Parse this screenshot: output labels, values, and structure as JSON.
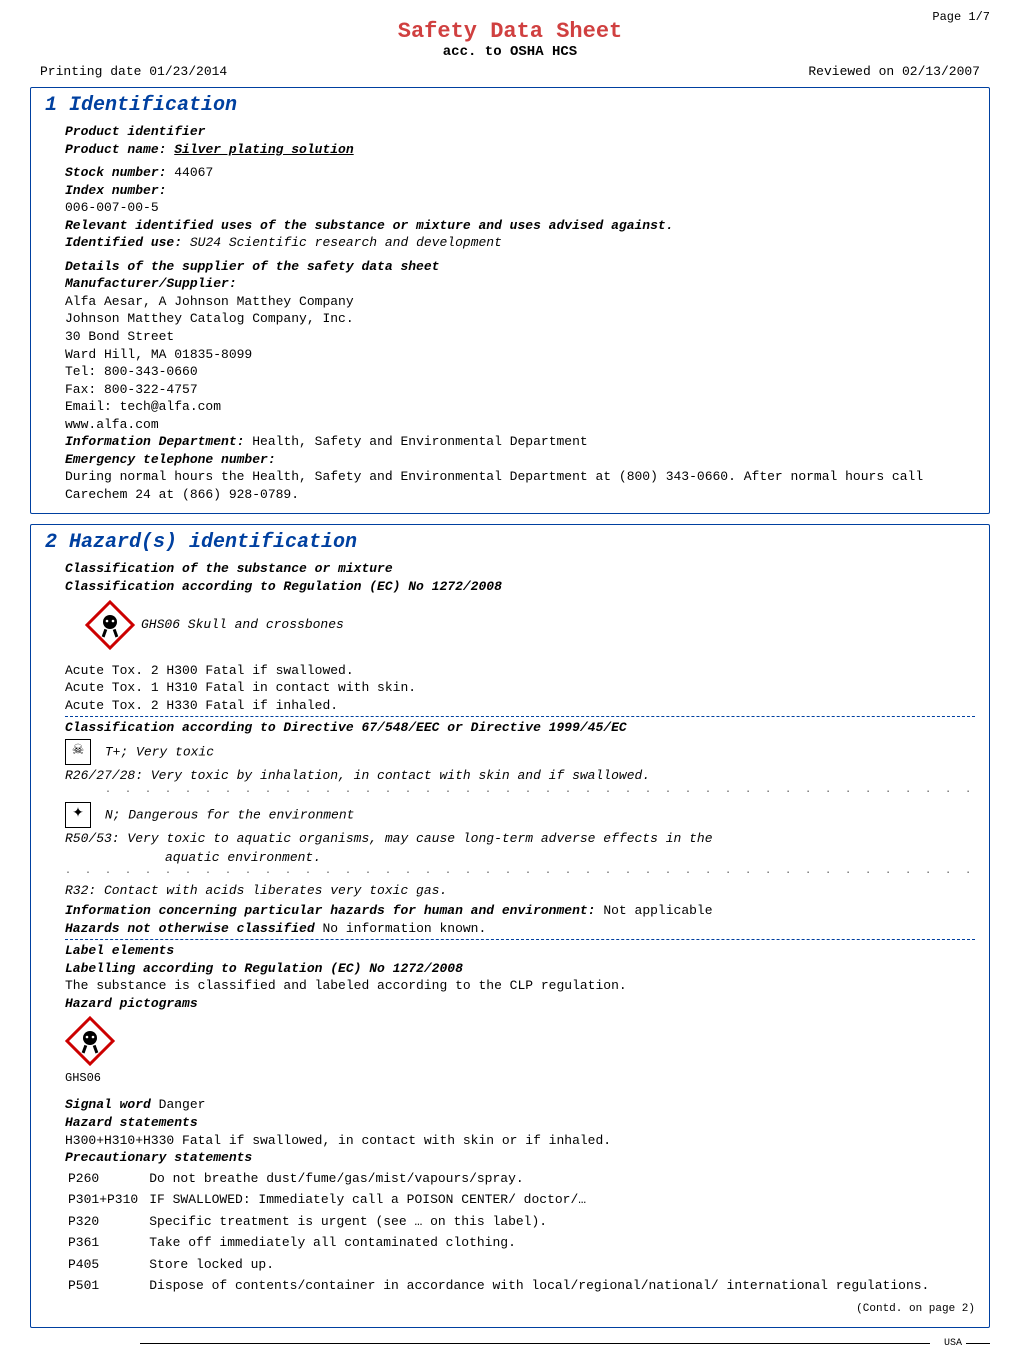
{
  "page_header": "Page 1/7",
  "title": "Safety Data Sheet",
  "subtitle": "acc. to OSHA HCS",
  "printing_date": "Printing date 01/23/2014",
  "reviewed_on": "Reviewed on 02/13/2007",
  "section1": {
    "title": "1 Identification",
    "product_identifier_label": "Product identifier",
    "product_name_label": "Product name:",
    "product_name": "Silver plating solution",
    "stock_number_label": "Stock number:",
    "stock_number": "44067",
    "index_number_label": "Index number:",
    "index_number": "006-007-00-5",
    "relevant_uses_label": "Relevant identified uses of the substance or mixture and uses advised against.",
    "identified_use_label": "Identified use:",
    "identified_use": "SU24   Scientific research and development",
    "supplier_details_label": "Details of the supplier of the safety data sheet",
    "manufacturer_label": "Manufacturer/Supplier:",
    "manufacturer_lines": [
      "Alfa Aesar, A Johnson Matthey Company",
      "Johnson Matthey Catalog Company, Inc.",
      "30 Bond Street",
      "Ward Hill, MA 01835-8099",
      "Tel: 800-343-0660",
      "Fax: 800-322-4757",
      "Email: tech@alfa.com",
      "www.alfa.com"
    ],
    "info_dept_label": "Information Department:",
    "info_dept": "Health, Safety and Environmental Department",
    "emergency_label": "Emergency telephone number:",
    "emergency_text": "During normal hours the Health, Safety and Environmental Department at (800) 343-0660.  After normal hours call Carechem 24 at (866) 928-0789."
  },
  "section2": {
    "title": "2 Hazard(s) identification",
    "classification_label": "Classification of the substance or mixture",
    "classification_ec_label": "Classification according to Regulation (EC) No 1272/2008",
    "ghs06_text": "GHS06 Skull and crossbones",
    "acute_tox": [
      "Acute Tox. 2  H300  Fatal if swallowed.",
      "Acute Tox. 1  H310  Fatal in contact with skin.",
      "Acute Tox. 2  H330  Fatal if inhaled."
    ],
    "classification_dir_label": "Classification according to Directive 67/548/EEC or Directive 1999/45/EC",
    "tplus": "T+; Very toxic",
    "r26": "R26/27/28:   Very toxic by inhalation, in contact with skin and if swallowed.",
    "ndanger": "N; Dangerous for the environment",
    "r50": "R50/53:      Very toxic to aquatic organisms, may cause long-term adverse effects in the",
    "r50_cont": "aquatic environment.",
    "r32": "R32:         Contact with acids liberates very toxic gas.",
    "info_hazards_label": "Information concerning particular hazards for human and environment:",
    "info_hazards": "Not applicable",
    "hazards_noc_label": "Hazards not otherwise classified",
    "hazards_noc": "No information known.",
    "label_elements_label": "Label elements",
    "labelling_label": "Labelling according to Regulation (EC) No 1272/2008",
    "labelling_text": "The substance is classified and labeled according to the CLP regulation.",
    "hazard_pict_label": "Hazard pictograms",
    "ghs06_code": "GHS06",
    "signal_word_label": "Signal word",
    "signal_word": "Danger",
    "hazard_statements_label": "Hazard statements",
    "hazard_statement": "H300+H310+H330 Fatal if swallowed, in contact with skin or if inhaled.",
    "precautionary_label": "Precautionary statements",
    "pcodes": [
      [
        "P260",
        "Do not breathe dust/fume/gas/mist/vapours/spray."
      ],
      [
        "P301+P310",
        "IF SWALLOWED: Immediately call a POISON CENTER/ doctor/…"
      ],
      [
        "P320",
        "Specific treatment is urgent (see … on this label)."
      ],
      [
        "P361",
        "Take off immediately all contaminated clothing."
      ],
      [
        "P405",
        "Store locked up."
      ],
      [
        "P501",
        "Dispose of contents/container in accordance with local/regional/national/ international regulations."
      ]
    ],
    "contd": "(Contd. on page 2)"
  },
  "footer": "USA"
}
